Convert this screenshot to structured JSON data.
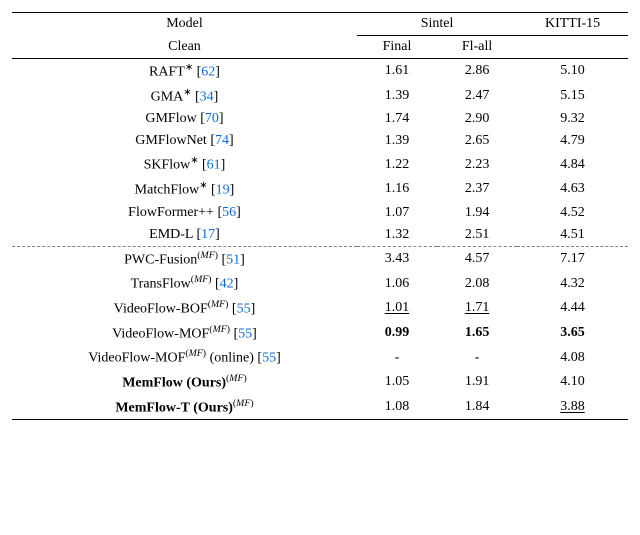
{
  "header": {
    "model": "Model",
    "sintel": "Sintel",
    "kitti": "KITTI-15",
    "clean": "Clean",
    "final": "Final",
    "flall": "Fl-all"
  },
  "rows_top": [
    {
      "name": "RAFT",
      "sup": "∗",
      "cite": "62",
      "clean": "1.61",
      "final": "2.86",
      "flall": "5.10"
    },
    {
      "name": "GMA",
      "sup": "∗",
      "cite": "34",
      "clean": "1.39",
      "final": "2.47",
      "flall": "5.15"
    },
    {
      "name": "GMFlow",
      "cite": "70",
      "clean": "1.74",
      "final": "2.90",
      "flall": "9.32"
    },
    {
      "name": "GMFlowNet",
      "cite": "74",
      "clean": "1.39",
      "final": "2.65",
      "flall": "4.79"
    },
    {
      "name": "SKFlow",
      "sup": "∗",
      "cite": "61",
      "clean": "1.22",
      "final": "2.23",
      "flall": "4.84"
    },
    {
      "name": "MatchFlow",
      "sup": "∗",
      "cite": "19",
      "clean": "1.16",
      "final": "2.37",
      "flall": "4.63"
    },
    {
      "name": "FlowFormer++",
      "cite": "56",
      "clean": "1.07",
      "final": "1.94",
      "flall": "4.52"
    },
    {
      "name": "EMD-L",
      "cite": "17",
      "clean": "1.32",
      "final": "2.51",
      "flall": "4.51"
    }
  ],
  "rows_bottom": [
    {
      "name": "PWC-Fusion",
      "sup_mf": true,
      "cite": "51",
      "clean": "3.43",
      "final": "4.57",
      "flall": "7.17"
    },
    {
      "name": "TransFlow",
      "sup_mf": true,
      "cite": "42",
      "clean": "1.06",
      "final": "2.08",
      "flall": "4.32"
    },
    {
      "name": "VideoFlow-BOF",
      "sup_mf": true,
      "cite": "55",
      "clean": "1.01",
      "clean_ul": true,
      "final": "1.71",
      "final_ul": true,
      "flall": "4.44"
    },
    {
      "name": "VideoFlow-MOF",
      "sup_mf": true,
      "cite": "55",
      "clean": "0.99",
      "clean_bold": true,
      "final": "1.65",
      "final_bold": true,
      "flall": "3.65",
      "flall_bold": true
    },
    {
      "name": "VideoFlow-MOF",
      "sup_mf": true,
      "after": " (online)",
      "cite": "55",
      "clean": "-",
      "final": "-",
      "flall": "4.08"
    },
    {
      "name": "MemFlow (Ours)",
      "name_bold": true,
      "sup_mf": true,
      "clean": "1.05",
      "final": "1.91",
      "flall": "4.10"
    },
    {
      "name": "MemFlow-T (Ours)",
      "name_bold": true,
      "sup_mf": true,
      "clean": "1.08",
      "final": "1.84",
      "flall": "3.88",
      "flall_ul": true
    }
  ]
}
